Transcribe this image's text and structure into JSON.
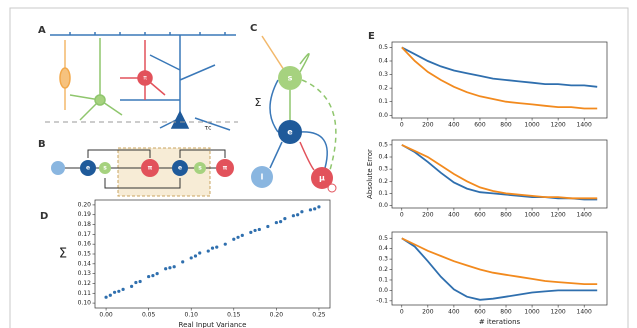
{
  "panel_labels": [
    "A",
    "B",
    "C",
    "D",
    "E"
  ],
  "diagram": {
    "A": {
      "pi": "π",
      "tau": "τc"
    },
    "B": {
      "nodes": [
        "e",
        "s",
        "π",
        "e",
        "s",
        "π"
      ]
    },
    "C": {
      "s": "s",
      "sigma": "Σ",
      "e": "e",
      "input": "I",
      "mu": "μ"
    }
  },
  "chart_data": [
    {
      "type": "scatter",
      "xlabel": "Real Input Variance",
      "ylabel": "Σ",
      "x": [
        0,
        0.005,
        0.01,
        0.015,
        0.02,
        0.03,
        0.035,
        0.04,
        0.05,
        0.055,
        0.06,
        0.07,
        0.075,
        0.08,
        0.09,
        0.1,
        0.105,
        0.11,
        0.12,
        0.125,
        0.13,
        0.14,
        0.15,
        0.155,
        0.16,
        0.17,
        0.175,
        0.18,
        0.19,
        0.2,
        0.205,
        0.21,
        0.22,
        0.225,
        0.23,
        0.24,
        0.245,
        0.25
      ],
      "series": [
        {
          "color": "#2f6fae",
          "values": [
            0.106,
            0.108,
            0.111,
            0.112,
            0.114,
            0.117,
            0.121,
            0.122,
            0.127,
            0.128,
            0.13,
            0.135,
            0.136,
            0.137,
            0.142,
            0.146,
            0.148,
            0.151,
            0.153,
            0.156,
            0.157,
            0.16,
            0.165,
            0.167,
            0.169,
            0.172,
            0.174,
            0.175,
            0.178,
            0.182,
            0.183,
            0.186,
            0.189,
            0.19,
            0.193,
            0.195,
            0.196,
            0.198
          ]
        }
      ],
      "xlim": [
        -0.013,
        0.263
      ],
      "xticks": [
        {
          "value": 0,
          "label": "0.00"
        },
        0.05,
        {
          "value": 0.1,
          "label": "0.10"
        },
        0.15,
        {
          "value": 0.2,
          "label": "0.20"
        },
        0.25
      ],
      "ylim": [
        0.095,
        0.205
      ],
      "yticks": [
        {
          "value": 0.1,
          "label": "0.10"
        },
        0.11,
        0.12,
        0.13,
        0.14,
        0.15,
        0.16,
        0.17,
        0.18,
        0.19,
        {
          "value": 0.2,
          "label": "0.20"
        }
      ]
    },
    {
      "type": "line",
      "x": [
        0,
        100,
        200,
        300,
        400,
        500,
        600,
        700,
        800,
        900,
        1000,
        1100,
        1200,
        1300,
        1400,
        1500
      ],
      "series": [
        {
          "color": "#2f6fae",
          "values": [
            0.5,
            0.45,
            0.4,
            0.36,
            0.33,
            0.31,
            0.29,
            0.27,
            0.26,
            0.25,
            0.24,
            0.23,
            0.23,
            0.22,
            0.22,
            0.21
          ]
        },
        {
          "color": "#f28a1e",
          "values": [
            0.5,
            0.4,
            0.32,
            0.26,
            0.21,
            0.17,
            0.14,
            0.12,
            0.1,
            0.09,
            0.08,
            0.07,
            0.06,
            0.06,
            0.05,
            0.05
          ]
        }
      ],
      "xlim": [
        -75,
        1575
      ],
      "xticks": [
        0,
        200,
        400,
        600,
        800,
        1000,
        1200,
        1400
      ],
      "ylim": [
        -0.02,
        0.54
      ],
      "yticks": [
        {
          "value": 0,
          "label": "0.0"
        },
        0.1,
        0.2,
        0.3,
        0.4,
        0.5
      ]
    },
    {
      "type": "line",
      "ylabel": "Absolute Error",
      "x": [
        0,
        100,
        200,
        300,
        400,
        500,
        600,
        700,
        800,
        900,
        1000,
        1100,
        1200,
        1300,
        1400,
        1500
      ],
      "series": [
        {
          "color": "#2f6fae",
          "values": [
            0.5,
            0.44,
            0.36,
            0.27,
            0.19,
            0.14,
            0.11,
            0.1,
            0.09,
            0.08,
            0.07,
            0.07,
            0.06,
            0.06,
            0.05,
            0.05
          ]
        },
        {
          "color": "#f28a1e",
          "values": [
            0.5,
            0.45,
            0.4,
            0.33,
            0.26,
            0.2,
            0.15,
            0.12,
            0.1,
            0.09,
            0.08,
            0.07,
            0.07,
            0.06,
            0.06,
            0.06
          ]
        }
      ],
      "xlim": [
        -75,
        1575
      ],
      "xticks": [
        0,
        200,
        400,
        600,
        800,
        1000,
        1200,
        1400
      ],
      "ylim": [
        -0.02,
        0.54
      ],
      "yticks": [
        {
          "value": 0,
          "label": "0.0"
        },
        0.1,
        0.2,
        0.3,
        0.4,
        0.5
      ]
    },
    {
      "type": "line",
      "xlabel": "# iterations",
      "x": [
        0,
        100,
        200,
        300,
        400,
        500,
        600,
        700,
        800,
        900,
        1000,
        1100,
        1200,
        1300,
        1400,
        1500
      ],
      "series": [
        {
          "color": "#2f6fae",
          "values": [
            0.5,
            0.42,
            0.28,
            0.13,
            0.01,
            -0.06,
            -0.09,
            -0.08,
            -0.06,
            -0.04,
            -0.02,
            -0.01,
            0,
            0,
            0,
            0
          ]
        },
        {
          "color": "#f28a1e",
          "values": [
            0.5,
            0.44,
            0.38,
            0.33,
            0.28,
            0.24,
            0.2,
            0.17,
            0.15,
            0.13,
            0.11,
            0.09,
            0.08,
            0.07,
            0.06,
            0.06
          ]
        }
      ],
      "xlim": [
        -75,
        1575
      ],
      "xticks": [
        0,
        200,
        400,
        600,
        800,
        1000,
        1200,
        1400
      ],
      "ylim": [
        -0.14,
        0.56
      ],
      "yticks": [
        -0.1,
        {
          "value": 0,
          "label": "0.0"
        },
        0.1,
        0.2,
        0.3,
        0.4,
        0.5
      ]
    }
  ]
}
